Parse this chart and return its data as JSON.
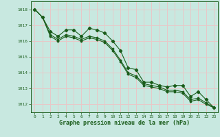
{
  "bg_color": "#c8e8e0",
  "grid_color": "#e8c8c8",
  "line_color": "#1a5c1a",
  "xlabel": "Graphe pression niveau de la mer (hPa)",
  "xlabel_color": "#1a5c1a",
  "ylim": [
    1011.5,
    1018.5
  ],
  "xlim": [
    -0.5,
    23.5
  ],
  "yticks": [
    1012,
    1013,
    1014,
    1015,
    1016,
    1017,
    1018
  ],
  "xticks": [
    0,
    1,
    2,
    3,
    4,
    5,
    6,
    7,
    8,
    9,
    10,
    11,
    12,
    13,
    14,
    15,
    16,
    17,
    18,
    19,
    20,
    21,
    22,
    23
  ],
  "series1": [
    1018.0,
    1017.5,
    1016.6,
    1016.3,
    1016.7,
    1016.7,
    1016.3,
    1016.8,
    1016.7,
    1016.5,
    1016.0,
    1015.4,
    1014.3,
    1014.2,
    1013.4,
    1013.4,
    1013.2,
    1013.1,
    1013.2,
    1013.2,
    1012.5,
    1012.8,
    1012.3,
    1011.8
  ],
  "series2": [
    1018.0,
    1017.5,
    1016.4,
    1016.1,
    1016.4,
    1016.3,
    1016.1,
    1016.3,
    1016.2,
    1016.0,
    1015.5,
    1014.8,
    1014.0,
    1013.8,
    1013.3,
    1013.2,
    1013.1,
    1012.9,
    1012.9,
    1012.8,
    1012.3,
    1012.4,
    1012.1,
    1011.8
  ],
  "series3": [
    1018.0,
    1017.5,
    1016.3,
    1016.0,
    1016.3,
    1016.2,
    1016.0,
    1016.2,
    1016.1,
    1015.9,
    1015.4,
    1014.7,
    1013.9,
    1013.7,
    1013.2,
    1013.1,
    1013.0,
    1012.8,
    1012.8,
    1012.7,
    1012.2,
    1012.3,
    1012.0,
    1011.8
  ]
}
